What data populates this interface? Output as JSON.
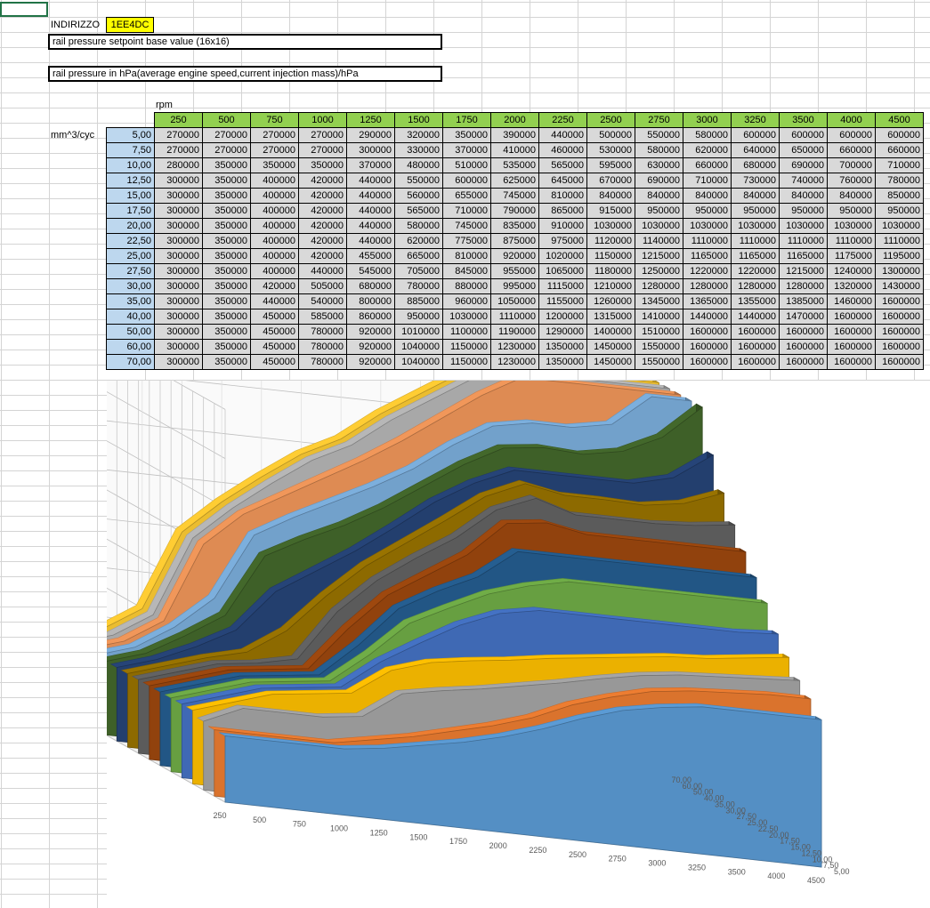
{
  "sheet": {
    "address_label": "INDIRIZZO",
    "address_value": "1EE4DC",
    "map_title": "rail pressure setpoint base value (16x16)",
    "map_description": "rail pressure in hPa(average engine speed,current injection mass)/hPa",
    "x_axis_label": "rpm",
    "y_axis_label": "mm^3/cyc"
  },
  "chart_data": {
    "type": "area",
    "title": "",
    "xlabel": "",
    "ylabel": "",
    "ylim": [
      0,
      1600000
    ],
    "yticks": [
      "0",
      "200000",
      "400000",
      "600000",
      "800000",
      "1000000",
      "1200000",
      "1400000",
      "1600000"
    ],
    "categories": [
      "250",
      "500",
      "750",
      "1000",
      "1250",
      "1500",
      "1750",
      "2000",
      "2250",
      "2500",
      "2750",
      "3000",
      "3250",
      "3500",
      "4000",
      "4500"
    ],
    "series_labels": [
      "5,00",
      "7,50",
      "10,00",
      "12,50",
      "15,00",
      "17,50",
      "20,00",
      "22,50",
      "25,00",
      "27,50",
      "30,00",
      "35,00",
      "40,00",
      "50,00",
      "60,00",
      "70,00"
    ],
    "series_colors": [
      "#5b9bd5",
      "#ed7d31",
      "#a5a5a5",
      "#ffc000",
      "#4472c4",
      "#70ad47",
      "#255e91",
      "#9e480e",
      "#636363",
      "#997300",
      "#264478",
      "#43682b",
      "#7cafdd",
      "#f1975a",
      "#b7b7b7",
      "#ffcd33"
    ],
    "series": [
      {
        "name": "5,00",
        "values": [
          270000,
          270000,
          270000,
          270000,
          290000,
          320000,
          350000,
          390000,
          440000,
          500000,
          550000,
          580000,
          600000,
          600000,
          600000,
          600000
        ]
      },
      {
        "name": "7,50",
        "values": [
          270000,
          270000,
          270000,
          270000,
          300000,
          330000,
          370000,
          410000,
          460000,
          530000,
          580000,
          620000,
          640000,
          650000,
          660000,
          660000
        ]
      },
      {
        "name": "10,00",
        "values": [
          280000,
          350000,
          350000,
          350000,
          370000,
          480000,
          510000,
          535000,
          565000,
          595000,
          630000,
          660000,
          680000,
          690000,
          700000,
          710000
        ]
      },
      {
        "name": "12,50",
        "values": [
          300000,
          350000,
          400000,
          420000,
          440000,
          550000,
          600000,
          625000,
          645000,
          670000,
          690000,
          710000,
          730000,
          740000,
          760000,
          780000
        ]
      },
      {
        "name": "15,00",
        "values": [
          300000,
          350000,
          400000,
          420000,
          440000,
          560000,
          655000,
          745000,
          810000,
          840000,
          840000,
          840000,
          840000,
          840000,
          840000,
          850000
        ]
      },
      {
        "name": "17,50",
        "values": [
          300000,
          350000,
          400000,
          420000,
          440000,
          565000,
          710000,
          790000,
          865000,
          915000,
          950000,
          950000,
          950000,
          950000,
          950000,
          950000
        ]
      },
      {
        "name": "20,00",
        "values": [
          300000,
          350000,
          400000,
          420000,
          440000,
          580000,
          745000,
          835000,
          910000,
          1030000,
          1030000,
          1030000,
          1030000,
          1030000,
          1030000,
          1030000
        ]
      },
      {
        "name": "22,50",
        "values": [
          300000,
          350000,
          400000,
          420000,
          440000,
          620000,
          775000,
          875000,
          975000,
          1120000,
          1140000,
          1110000,
          1110000,
          1110000,
          1110000,
          1110000
        ]
      },
      {
        "name": "25,00",
        "values": [
          300000,
          350000,
          400000,
          420000,
          455000,
          665000,
          810000,
          920000,
          1020000,
          1150000,
          1215000,
          1165000,
          1165000,
          1165000,
          1175000,
          1195000
        ]
      },
      {
        "name": "27,50",
        "values": [
          300000,
          350000,
          400000,
          440000,
          545000,
          705000,
          845000,
          955000,
          1065000,
          1180000,
          1250000,
          1220000,
          1220000,
          1215000,
          1240000,
          1300000
        ]
      },
      {
        "name": "30,00",
        "values": [
          300000,
          350000,
          420000,
          505000,
          680000,
          780000,
          880000,
          995000,
          1115000,
          1210000,
          1280000,
          1280000,
          1280000,
          1280000,
          1320000,
          1430000
        ]
      },
      {
        "name": "35,00",
        "values": [
          300000,
          350000,
          440000,
          540000,
          800000,
          885000,
          960000,
          1050000,
          1155000,
          1260000,
          1345000,
          1365000,
          1355000,
          1385000,
          1460000,
          1600000
        ]
      },
      {
        "name": "40,00",
        "values": [
          300000,
          350000,
          450000,
          585000,
          860000,
          950000,
          1030000,
          1110000,
          1200000,
          1315000,
          1410000,
          1440000,
          1440000,
          1470000,
          1600000,
          1600000
        ]
      },
      {
        "name": "50,00",
        "values": [
          300000,
          350000,
          450000,
          780000,
          920000,
          1010000,
          1100000,
          1190000,
          1290000,
          1400000,
          1510000,
          1600000,
          1600000,
          1600000,
          1600000,
          1600000
        ]
      },
      {
        "name": "60,00",
        "values": [
          300000,
          350000,
          450000,
          780000,
          920000,
          1040000,
          1150000,
          1230000,
          1350000,
          1450000,
          1550000,
          1600000,
          1600000,
          1600000,
          1600000,
          1600000
        ]
      },
      {
        "name": "70,00",
        "values": [
          300000,
          350000,
          450000,
          780000,
          920000,
          1040000,
          1150000,
          1230000,
          1350000,
          1450000,
          1550000,
          1600000,
          1600000,
          1600000,
          1600000,
          1600000
        ]
      }
    ]
  }
}
